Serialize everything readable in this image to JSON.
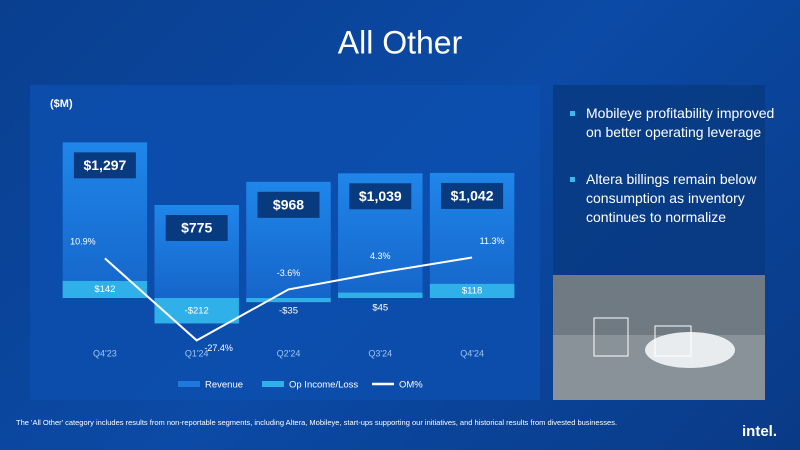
{
  "chart_data": {
    "type": "bar-line",
    "title": "All Other",
    "y_label": "($M)",
    "categories": [
      "Q4'23",
      "Q1'24",
      "Q2'24",
      "Q3'24",
      "Q4'24"
    ],
    "ylim": [
      -400,
      1600
    ],
    "y2lim": [
      -30,
      82
    ],
    "series": [
      {
        "name": "Revenue",
        "color": "#1f78dc",
        "values": [
          1297,
          775,
          968,
          1039,
          1042
        ],
        "value_labels": [
          "$1,297",
          "$775",
          "$968",
          "$1,039",
          "$1,042"
        ]
      },
      {
        "name": "Op Income/Loss",
        "color": "#2fb0e8",
        "values": [
          142,
          -212,
          -35,
          45,
          118
        ],
        "value_labels": [
          "$142",
          "-$212",
          "-$35",
          "$45",
          "$118"
        ]
      },
      {
        "name": "OM%",
        "color": "#ffffff",
        "axis": "y2",
        "values": [
          10.9,
          -27.4,
          -3.6,
          4.3,
          11.3
        ],
        "value_labels": [
          "10.9%",
          "-27.4%",
          "-3.6%",
          "4.3%",
          "11.3%"
        ]
      }
    ]
  },
  "bullets": [
    "Mobileye profitability improved on better operating leverage",
    "Altera billings remain below consumption as inventory continues to normalize"
  ],
  "footnote": "The 'All Other' category includes results from non-reportable segments, including Altera, Mobileye, start-ups supporting our initiatives, and historical results from divested businesses.",
  "logo": "intel."
}
